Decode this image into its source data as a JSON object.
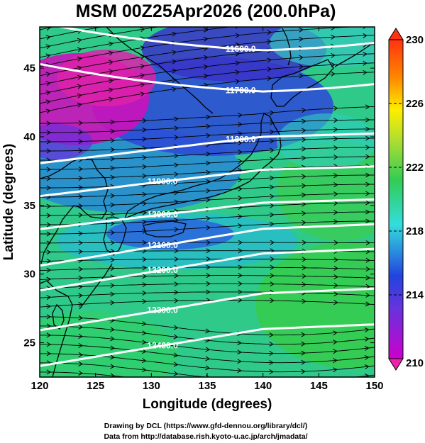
{
  "title": "MSM 00Z25Apr2026 (200.0hPa)",
  "xlabel": "Longitude (degrees)",
  "ylabel": "Latitude  (degrees)",
  "credits": [
    "Drawing by DCL (https://www.gfd-dennou.org/library/dcl/)",
    "Data from http://database.rish.kyoto-u.ac.jp/arch/jmadata/"
  ],
  "colors": {
    "frame": "#000000",
    "contour": "#ffffff",
    "coast": "#000000",
    "streamline": "#000000"
  },
  "chart_data": {
    "type": "heatmap",
    "map_extent": {
      "lon": [
        120,
        150
      ],
      "lat": [
        22.5,
        48
      ]
    },
    "x_ticks": [
      "120",
      "125",
      "130",
      "135",
      "140",
      "145",
      "150"
    ],
    "y_ticks": [
      "25",
      "30",
      "35",
      "40",
      "45"
    ],
    "colorbar": {
      "range": [
        210,
        230
      ],
      "tick_labels": [
        "230",
        "226",
        "222",
        "218",
        "214",
        "210"
      ],
      "tick_values": [
        230,
        226,
        222,
        218,
        214,
        210
      ],
      "colors": [
        "#cc00cc",
        "#2244dd",
        "#33dddd",
        "#33cc55",
        "#aadd33",
        "#ffee00",
        "#ff8800",
        "#ff3311"
      ]
    },
    "contours": [
      {
        "label": "11600.0",
        "lat_at_140": 46.3
      },
      {
        "label": "11700.0",
        "lat_at_140": 43.3
      },
      {
        "label": "11800.0",
        "lat_at_140": 40.0
      },
      {
        "label": "11900.0",
        "lat_at_140": 37.6
      },
      {
        "label": "12000.0",
        "lat_at_140": 35.2
      },
      {
        "label": "12100.0",
        "lat_at_140": 33.3
      },
      {
        "label": "12200.0",
        "lat_at_140": 31.5
      },
      {
        "label": "12300.0",
        "lat_at_140": 28.6
      },
      {
        "label": "12400.0",
        "lat_at_140": 26.0
      }
    ]
  }
}
